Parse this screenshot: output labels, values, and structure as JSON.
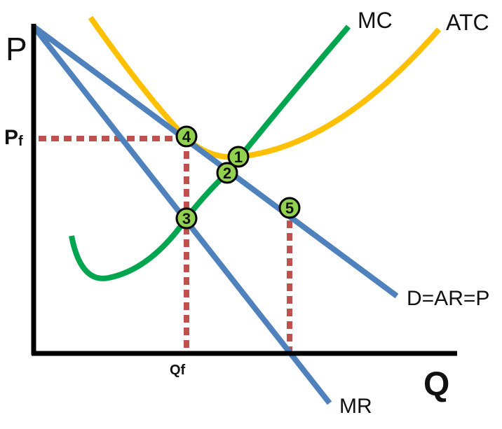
{
  "axes": {
    "y_label": "P",
    "x_label": "Q",
    "price_label": "P",
    "price_subscript": "f",
    "quantity_label": "Qf"
  },
  "curves": {
    "mc": {
      "label": "MC",
      "color": "#00A64F"
    },
    "atc": {
      "label": "ATC",
      "color": "#FFC000"
    },
    "demand": {
      "label": "D=AR=P",
      "color": "#4F81BD"
    },
    "mr": {
      "label": "MR",
      "color": "#4F81BD"
    }
  },
  "guides": {
    "color": "#C0504D"
  },
  "points": {
    "fill": "#92D050",
    "labels": [
      "1",
      "2",
      "3",
      "4",
      "5"
    ]
  }
}
